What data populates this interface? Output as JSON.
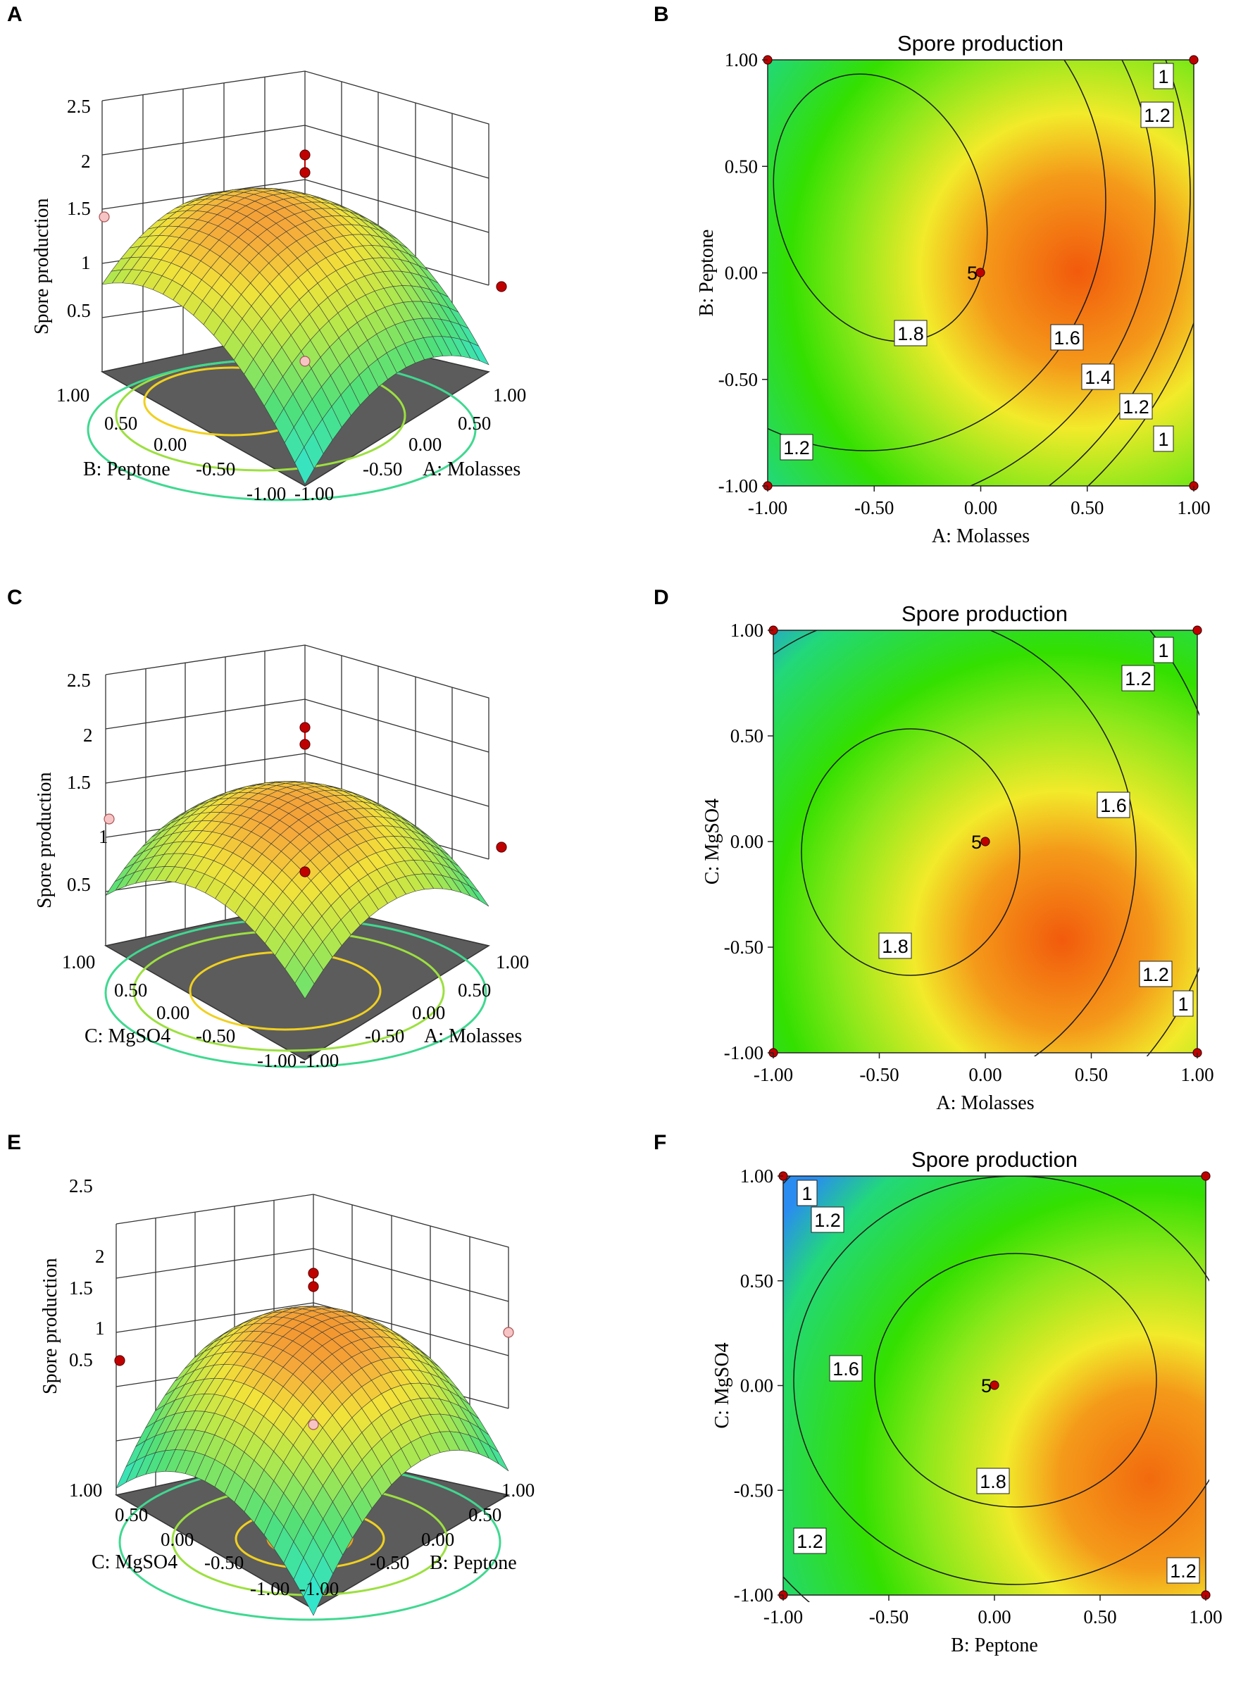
{
  "figure": {
    "panel_labels": [
      "A",
      "B",
      "C",
      "D",
      "E",
      "F"
    ]
  },
  "chart_data": [
    {
      "id": "A",
      "type": "surface3d",
      "zlabel": "Spore production",
      "zticks": [
        "0.5",
        "1",
        "1.5",
        "2",
        "2.5"
      ],
      "xlabel": "A: Molasses",
      "xticks": [
        "-1.00",
        "-0.50",
        "0.00",
        "0.50",
        "1.00"
      ],
      "ylabel": "B: Peptone",
      "yticks": [
        "-1.00",
        "-0.50",
        "0.00",
        "0.50",
        "1.00"
      ],
      "zlim": [
        0.5,
        2.5
      ],
      "colors": {
        "high": "#f07a1e",
        "mid": "#f2e23a",
        "low": "#44d98a",
        "floor": "#5a5a5a",
        "point": "#c00000",
        "point_low": "#f6c4c4"
      }
    },
    {
      "id": "B",
      "type": "contour",
      "title": "Spore production",
      "xlabel": "A: Molasses",
      "ylabel": "B: Peptone",
      "xticks": [
        "-1.00",
        "-0.50",
        "0.00",
        "0.50",
        "1.00"
      ],
      "yticks": [
        "-1.00",
        "-0.50",
        "0.00",
        "0.50",
        "1.00"
      ],
      "xlim": [
        -1,
        1
      ],
      "ylim": [
        -1,
        1
      ],
      "center_point": {
        "x": 0.0,
        "y": 0.0,
        "label": "5"
      },
      "contour_labels": [
        "1",
        "1.2",
        "1.8",
        "1.6",
        "1.4",
        "1.2",
        "1",
        "1.2"
      ],
      "colors": {
        "center": "#f06010",
        "yellow": "#f2ea2a",
        "green": "#33e000",
        "cyan": "#22c8e8",
        "point": "#c00000"
      }
    },
    {
      "id": "C",
      "type": "surface3d",
      "zlabel": "Spore production",
      "zticks": [
        "0.5",
        "1",
        "1.5",
        "2",
        "2.5"
      ],
      "xlabel": "A: Molasses",
      "xticks": [
        "-1.00",
        "-0.50",
        "0.00",
        "0.50",
        "1.00"
      ],
      "ylabel": "C: MgSO4",
      "yticks": [
        "-1.00",
        "-0.50",
        "0.00",
        "0.50",
        "1.00"
      ],
      "zlim": [
        0.5,
        2.5
      ]
    },
    {
      "id": "D",
      "type": "contour",
      "title": "Spore production",
      "xlabel": "A: Molasses",
      "ylabel": "C: MgSO4",
      "xticks": [
        "-1.00",
        "-0.50",
        "0.00",
        "0.50",
        "1.00"
      ],
      "yticks": [
        "-1.00",
        "-0.50",
        "0.00",
        "0.50",
        "1.00"
      ],
      "xlim": [
        -1,
        1
      ],
      "ylim": [
        -1,
        1
      ],
      "center_point": {
        "x": 0.0,
        "y": 0.0,
        "label": "5"
      },
      "contour_labels": [
        "1",
        "1.2",
        "1.6",
        "1.8",
        "1.2",
        "1"
      ]
    },
    {
      "id": "E",
      "type": "surface3d",
      "zlabel": "Spore production",
      "zticks": [
        "0.5",
        "1",
        "1.5",
        "2",
        "2.5"
      ],
      "xlabel": "B: Peptone",
      "xticks": [
        "-1.00",
        "-0.50",
        "0.00",
        "0.50",
        "1.00"
      ],
      "ylabel": "C: MgSO4",
      "yticks": [
        "-1.00",
        "-0.50",
        "0.00",
        "0.50",
        "1.00"
      ],
      "zlim": [
        0.5,
        2.5
      ]
    },
    {
      "id": "F",
      "type": "contour",
      "title": "Spore production",
      "xlabel": "B: Peptone",
      "ylabel": "C: MgSO4",
      "xticks": [
        "-1.00",
        "-0.50",
        "0.00",
        "0.50",
        "1.00"
      ],
      "yticks": [
        "-1.00",
        "-0.50",
        "0.00",
        "0.50",
        "1.00"
      ],
      "xlim": [
        -1,
        1
      ],
      "ylim": [
        -1,
        1
      ],
      "center_point": {
        "x": 0.0,
        "y": 0.0,
        "label": "5"
      },
      "contour_labels": [
        "1",
        "1.2",
        "1.6",
        "1.8",
        "1.2",
        "1.2"
      ]
    }
  ]
}
